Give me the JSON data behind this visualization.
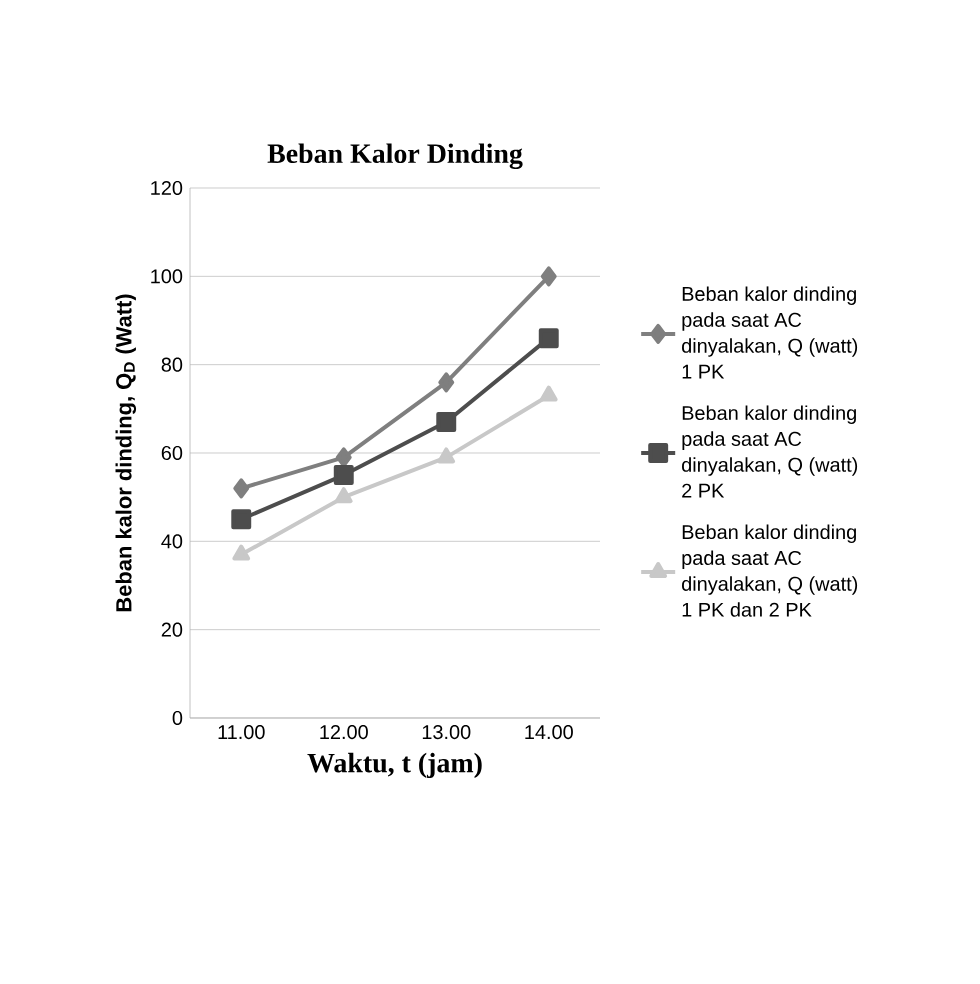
{
  "chart_data": {
    "type": "line",
    "title": "Beban Kalor Dinding",
    "xlabel": "Waktu, t (jam)",
    "ylabel": "Beban kalor dinding,  Q$_{D}$ (Watt)",
    "categories": [
      "11.00",
      "12.00",
      "13.00",
      "14.00"
    ],
    "series": [
      {
        "name": "Beban kalor dinding pada saat AC dinyalakan, Q (watt) 1 PK",
        "color": "#7f7f7f",
        "marker": "diamond",
        "values": [
          52,
          59,
          76,
          100
        ]
      },
      {
        "name": "Beban kalor dinding pada saat AC dinyalakan, Q (watt) 2 PK",
        "color": "#4d4d4d",
        "marker": "square",
        "values": [
          45,
          55,
          67,
          86
        ]
      },
      {
        "name": "Beban kalor dinding pada saat AC dinyalakan, Q (watt) 1 PK dan 2 PK",
        "color": "#c8c8c8",
        "marker": "triangle",
        "values": [
          37,
          50,
          59,
          73
        ]
      }
    ],
    "ylim": [
      0,
      120
    ],
    "yticks": [
      0,
      20,
      40,
      60,
      80,
      100,
      120
    ],
    "grid": "y",
    "legend": "right"
  }
}
